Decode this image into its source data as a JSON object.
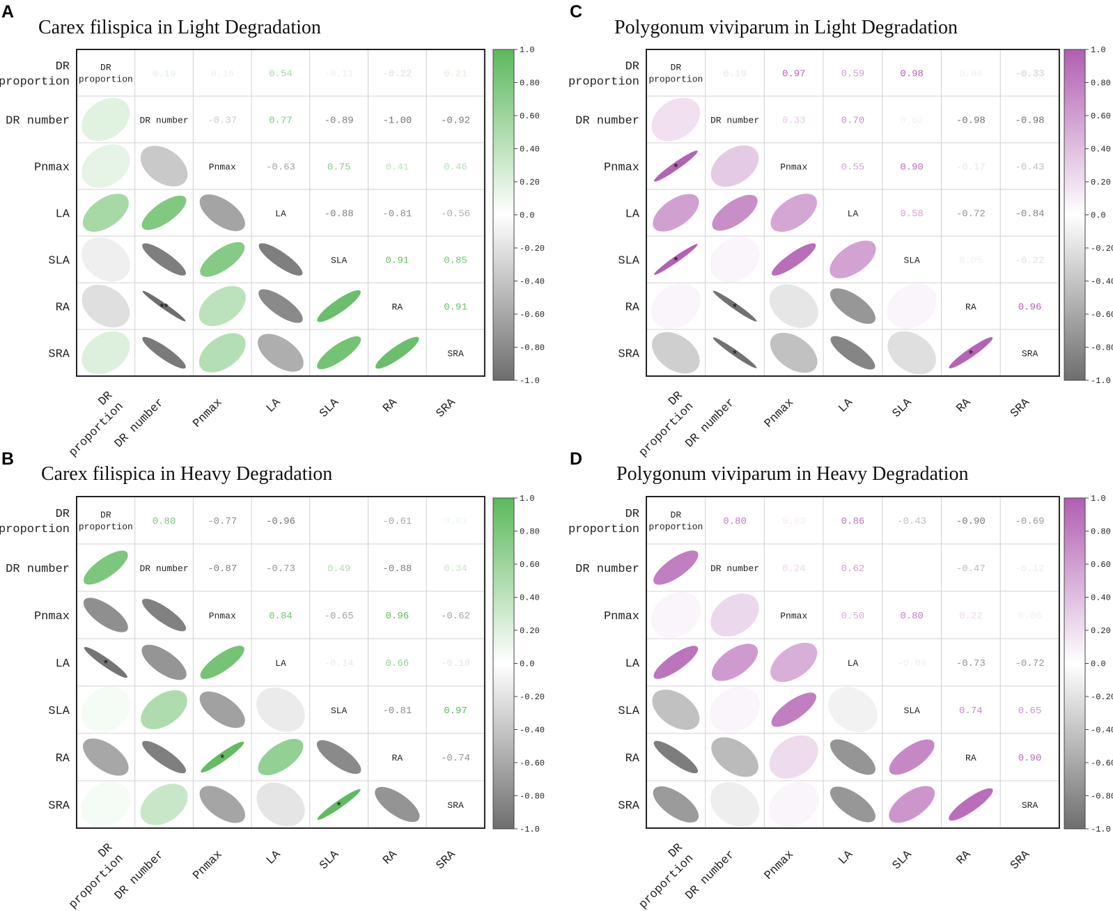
{
  "chart_data": [
    {
      "type": "heatmap",
      "panel": "A",
      "title": "Carex filispica in Light Degradation",
      "variables": [
        "DR proportion",
        "DR number",
        "Pnmax",
        "LA",
        "SLA",
        "RA",
        "SRA"
      ],
      "diagonal_labels": [
        "DR proportion",
        "DR number",
        "Pnmax",
        "LA",
        "SLA",
        "RA",
        "SRA"
      ],
      "lower_values": [
        [],
        [
          0.19
        ],
        [
          0.16,
          -0.37
        ],
        [
          0.54,
          0.77,
          -0.63
        ],
        [
          -0.11,
          -0.89,
          0.75,
          -0.88
        ],
        [
          -0.22,
          -1.0,
          0.41,
          -0.81,
          0.91
        ],
        [
          0.21,
          -0.92,
          0.46,
          -0.56,
          0.85,
          0.91
        ]
      ],
      "upper_text": [
        [
          null,
          "0.19",
          "0.16",
          "0.54",
          "-0.11",
          "-0.22",
          "0.21"
        ],
        [
          null,
          null,
          "-0.37",
          "0.77",
          "-0.89",
          "-1.00",
          "-0.92"
        ],
        [
          null,
          null,
          null,
          "-0.63",
          "0.75",
          "0.41",
          "0.46"
        ],
        [
          null,
          null,
          null,
          null,
          "-0.88",
          "-0.81",
          "-0.56"
        ],
        [
          null,
          null,
          null,
          null,
          null,
          "0.91",
          "0.85"
        ],
        [
          null,
          null,
          null,
          null,
          null,
          null,
          "0.91"
        ]
      ],
      "significance": [
        {
          "row": 5,
          "col": 1,
          "mark": "**"
        }
      ],
      "colorbar": {
        "min": -1.0,
        "max": 1.0,
        "ticks": [
          "1.0",
          "0.80",
          "0.60",
          "0.40",
          "0.20",
          "0.0",
          "-0.20",
          "-0.40",
          "-0.60",
          "-0.80",
          "-1.0"
        ]
      },
      "positive_color": "#5cb85c",
      "negative_color": "#6e6e6e"
    },
    {
      "type": "heatmap",
      "panel": "B",
      "title": "Carex filispica in Heavy Degradation",
      "variables": [
        "DR proportion",
        "DR number",
        "Pnmax",
        "LA",
        "SLA",
        "RA",
        "SRA"
      ],
      "diagonal_labels": [
        "DR proportion",
        "DR number",
        "Pnmax",
        "LA",
        "SLA",
        "RA",
        "SRA"
      ],
      "lower_values": [
        [],
        [
          0.8
        ],
        [
          -0.77,
          -0.87
        ],
        [
          -0.96,
          -0.73,
          0.84
        ],
        [
          0.02,
          0.49,
          -0.65,
          -0.14
        ],
        [
          -0.61,
          -0.88,
          0.96,
          0.66,
          -0.81
        ],
        [
          0.03,
          0.34,
          -0.62,
          -0.18,
          0.97,
          -0.74
        ]
      ],
      "upper_text": [
        [
          null,
          "0.80",
          "-0.77",
          "-0.96",
          "",
          "-0.61",
          "0.03"
        ],
        [
          null,
          null,
          "-0.87",
          "-0.73",
          "0.49",
          "-0.88",
          "0.34"
        ],
        [
          null,
          null,
          null,
          "0.84",
          "-0.65",
          "0.96",
          "-0.62"
        ],
        [
          null,
          null,
          null,
          null,
          "-0.14",
          "0.66",
          "-0.18"
        ],
        [
          null,
          null,
          null,
          null,
          null,
          "-0.81",
          "0.97"
        ],
        [
          null,
          null,
          null,
          null,
          null,
          null,
          "-0.74"
        ]
      ],
      "significance": [
        {
          "row": 3,
          "col": 0,
          "mark": "*"
        },
        {
          "row": 5,
          "col": 2,
          "mark": "*"
        },
        {
          "row": 6,
          "col": 4,
          "mark": "*"
        }
      ],
      "colorbar": {
        "min": -1.0,
        "max": 1.0,
        "ticks": [
          "1.0",
          "0.80",
          "0.60",
          "0.40",
          "0.20",
          "0.0",
          "-0.20",
          "-0.40",
          "-0.60",
          "-0.80",
          "-1.0"
        ]
      },
      "positive_color": "#5cb85c",
      "negative_color": "#6e6e6e"
    },
    {
      "type": "heatmap",
      "panel": "C",
      "title": "Polygonum viviparum in Light Degradation",
      "variables": [
        "DR proportion",
        "DR number",
        "Pnmax",
        "LA",
        "SLA",
        "RA",
        "SRA"
      ],
      "diagonal_labels": [
        "DR proportion",
        "DR number",
        "Pnmax",
        "LA",
        "SLA",
        "RA",
        "SRA"
      ],
      "lower_values": [
        [],
        [
          0.19
        ],
        [
          0.97,
          0.33
        ],
        [
          0.59,
          0.7,
          0.55
        ],
        [
          0.98,
          0.02,
          0.9,
          0.58
        ],
        [
          0.04,
          -0.98,
          -0.17,
          -0.72,
          0.05
        ],
        [
          -0.33,
          -0.98,
          -0.43,
          -0.84,
          -0.22,
          0.96
        ]
      ],
      "upper_text": [
        [
          null,
          "0.19",
          "0.97",
          "0.59",
          "0.98",
          "0.04",
          "-0.33"
        ],
        [
          null,
          null,
          "0.33",
          "0.70",
          "0.02",
          "-0.98",
          "-0.98"
        ],
        [
          null,
          null,
          null,
          "0.55",
          "0.90",
          "-0.17",
          "-0.43"
        ],
        [
          null,
          null,
          null,
          null,
          "0.58",
          "-0.72",
          "-0.84"
        ],
        [
          null,
          null,
          null,
          null,
          null,
          "0.05",
          "-0.22"
        ],
        [
          null,
          null,
          null,
          null,
          null,
          null,
          "0.96"
        ]
      ],
      "significance": [
        {
          "row": 2,
          "col": 0,
          "mark": "*"
        },
        {
          "row": 4,
          "col": 0,
          "mark": "*"
        },
        {
          "row": 5,
          "col": 1,
          "mark": "*"
        },
        {
          "row": 6,
          "col": 1,
          "mark": "*"
        },
        {
          "row": 6,
          "col": 5,
          "mark": "*"
        }
      ],
      "colorbar": {
        "min": -1.0,
        "max": 1.0,
        "ticks": [
          "1.0",
          "0.80",
          "0.60",
          "0.40",
          "0.20",
          "0.0",
          "-0.20",
          "-0.40",
          "-0.60",
          "-0.80",
          "-1.0"
        ]
      },
      "positive_color": "#b15eb1",
      "negative_color": "#6e6e6e"
    },
    {
      "type": "heatmap",
      "panel": "D",
      "title": "Polygonum viviparum in Heavy Degradation",
      "variables": [
        "DR proportion",
        "DR number",
        "Pnmax",
        "LA",
        "SLA",
        "RA",
        "SRA"
      ],
      "diagonal_labels": [
        "DR proportion",
        "DR number",
        "Pnmax",
        "LA",
        "SLA",
        "RA",
        "SRA"
      ],
      "lower_values": [
        [],
        [
          0.8
        ],
        [
          0.03,
          0.24
        ],
        [
          0.86,
          0.62,
          0.5
        ],
        [
          -0.43,
          0.0,
          0.8,
          -0.09
        ],
        [
          -0.9,
          -0.47,
          0.22,
          -0.73,
          0.74
        ],
        [
          -0.69,
          -0.12,
          0.06,
          -0.72,
          0.65,
          0.9
        ]
      ],
      "upper_text": [
        [
          null,
          "0.80",
          "0.03",
          "0.86",
          "-0.43",
          "-0.90",
          "-0.69"
        ],
        [
          null,
          null,
          "0.24",
          "0.62",
          "",
          "-0.47",
          "-0.12"
        ],
        [
          null,
          null,
          null,
          "0.50",
          "0.80",
          "0.22",
          "0.06"
        ],
        [
          null,
          null,
          null,
          null,
          "-0.09",
          "-0.73",
          "-0.72"
        ],
        [
          null,
          null,
          null,
          null,
          null,
          "0.74",
          "0.65"
        ],
        [
          null,
          null,
          null,
          null,
          null,
          null,
          "0.90"
        ]
      ],
      "significance": [],
      "colorbar": {
        "min": -1.0,
        "max": 1.0,
        "ticks": [
          "1.0",
          "0.80",
          "0.60",
          "0.40",
          "0.20",
          "0.0",
          "-0.20",
          "-0.40",
          "-0.60",
          "-0.80",
          "-1.0"
        ]
      },
      "positive_color": "#b15eb1",
      "negative_color": "#6e6e6e"
    }
  ]
}
